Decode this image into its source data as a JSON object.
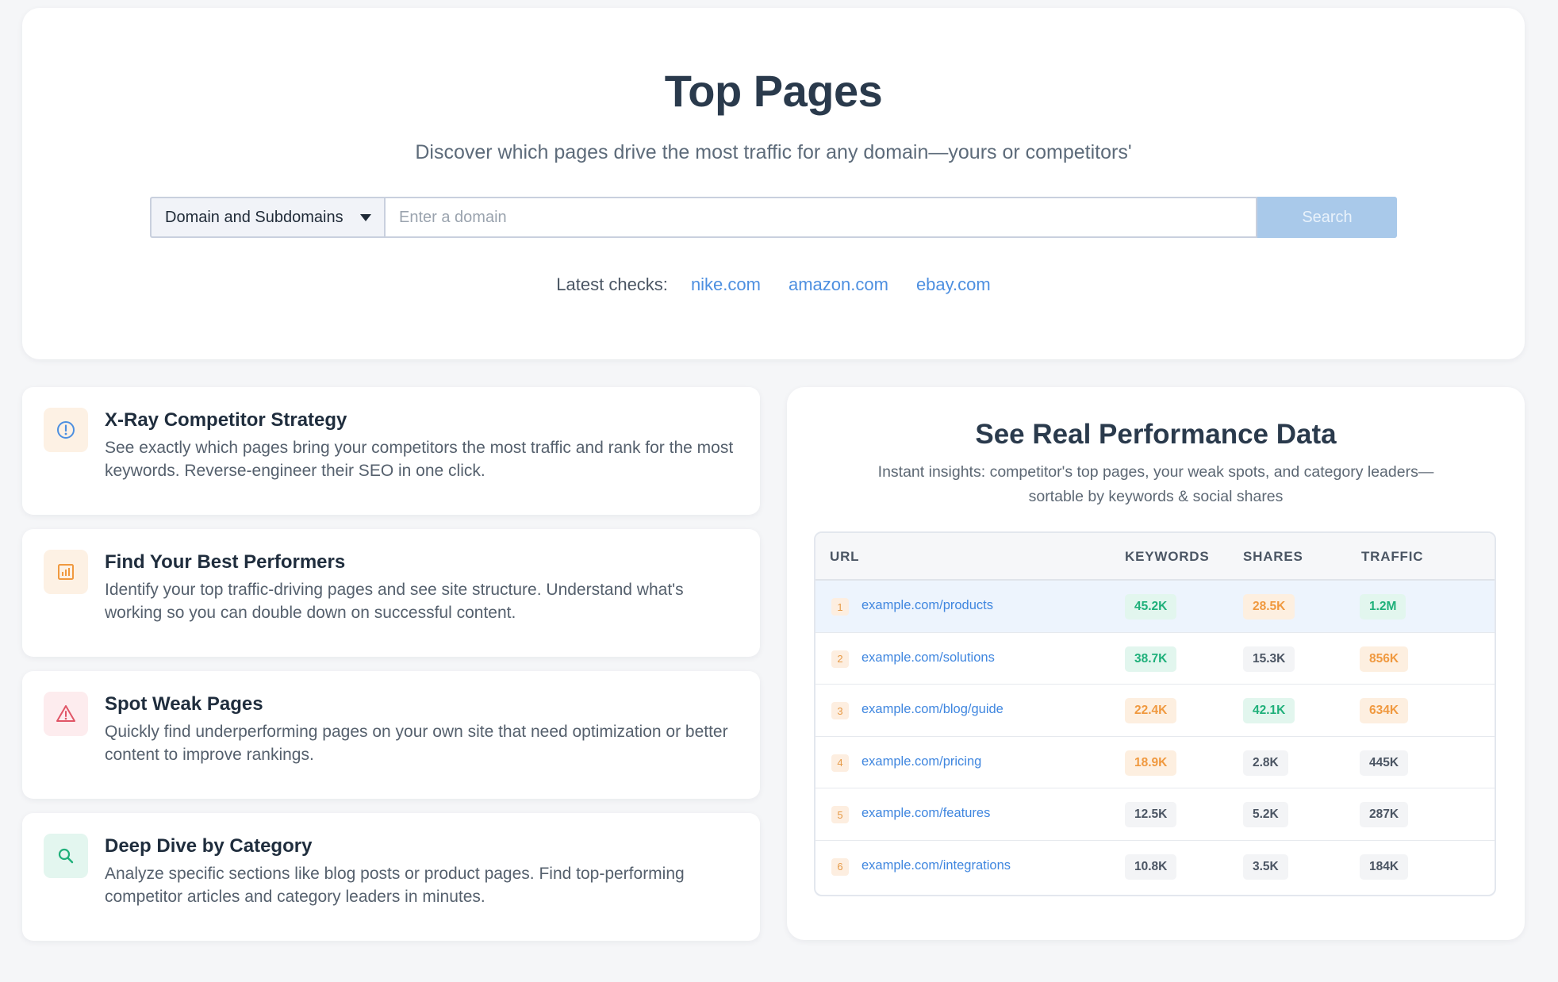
{
  "hero": {
    "title": "Top Pages",
    "subtitle": "Discover which pages drive the most traffic for any domain—yours or competitors'",
    "scope_select": "Domain and Subdomains",
    "input_placeholder": "Enter a domain",
    "search_label": "Search",
    "latest_label": "Latest checks:",
    "latest_links": [
      "nike.com",
      "amazon.com",
      "ebay.com"
    ]
  },
  "features": [
    {
      "title": "X-Ray Competitor Strategy",
      "description": "See exactly which pages bring your competitors the most traffic and rank for the most keywords. Reverse-engineer their SEO in one click.",
      "icon": "alert-circle-icon",
      "icon_color": "#4d8fe0",
      "icon_bg": "#fdf1e4"
    },
    {
      "title": "Find Your Best Performers",
      "description": "Identify your top traffic-driving pages and see site structure. Understand what's working so you can double down on successful content.",
      "icon": "bar-chart-icon",
      "icon_color": "#f0993f",
      "icon_bg": "#fdf1e4"
    },
    {
      "title": "Spot Weak Pages",
      "description": "Quickly find underperforming pages on your own site that need optimization or better content to improve rankings.",
      "icon": "warning-triangle-icon",
      "icon_color": "#e05566",
      "icon_bg": "#fdecee"
    },
    {
      "title": "Deep Dive by Category",
      "description": "Analyze specific sections like blog posts or product pages. Find top-performing competitor articles and category leaders in minutes.",
      "icon": "search-icon",
      "icon_color": "#1fb07a",
      "icon_bg": "#e3f6ef"
    }
  ],
  "performance": {
    "title": "See Real Performance Data",
    "subtitle": "Instant insights: competitor's top pages, your weak spots, and category leaders—sortable by keywords & social shares",
    "columns": {
      "url": "URL",
      "keywords": "KEYWORDS",
      "shares": "SHARES",
      "traffic": "TRAFFIC"
    },
    "rows": [
      {
        "rank": "1",
        "url": "example.com/products",
        "keywords": "45.2K",
        "kw_style": "green",
        "shares": "28.5K",
        "sh_style": "orange",
        "traffic": "1.2M",
        "tr_style": "green"
      },
      {
        "rank": "2",
        "url": "example.com/solutions",
        "keywords": "38.7K",
        "kw_style": "green",
        "shares": "15.3K",
        "sh_style": "gray",
        "traffic": "856K",
        "tr_style": "orange"
      },
      {
        "rank": "3",
        "url": "example.com/blog/guide",
        "keywords": "22.4K",
        "kw_style": "orange",
        "shares": "42.1K",
        "sh_style": "green",
        "traffic": "634K",
        "tr_style": "orange"
      },
      {
        "rank": "4",
        "url": "example.com/pricing",
        "keywords": "18.9K",
        "kw_style": "orange",
        "shares": "2.8K",
        "sh_style": "gray",
        "traffic": "445K",
        "tr_style": "gray"
      },
      {
        "rank": "5",
        "url": "example.com/features",
        "keywords": "12.5K",
        "kw_style": "gray",
        "shares": "5.2K",
        "sh_style": "gray",
        "traffic": "287K",
        "tr_style": "gray"
      },
      {
        "rank": "6",
        "url": "example.com/integrations",
        "keywords": "10.8K",
        "kw_style": "gray",
        "shares": "3.5K",
        "sh_style": "gray",
        "traffic": "184K",
        "tr_style": "gray"
      }
    ]
  }
}
